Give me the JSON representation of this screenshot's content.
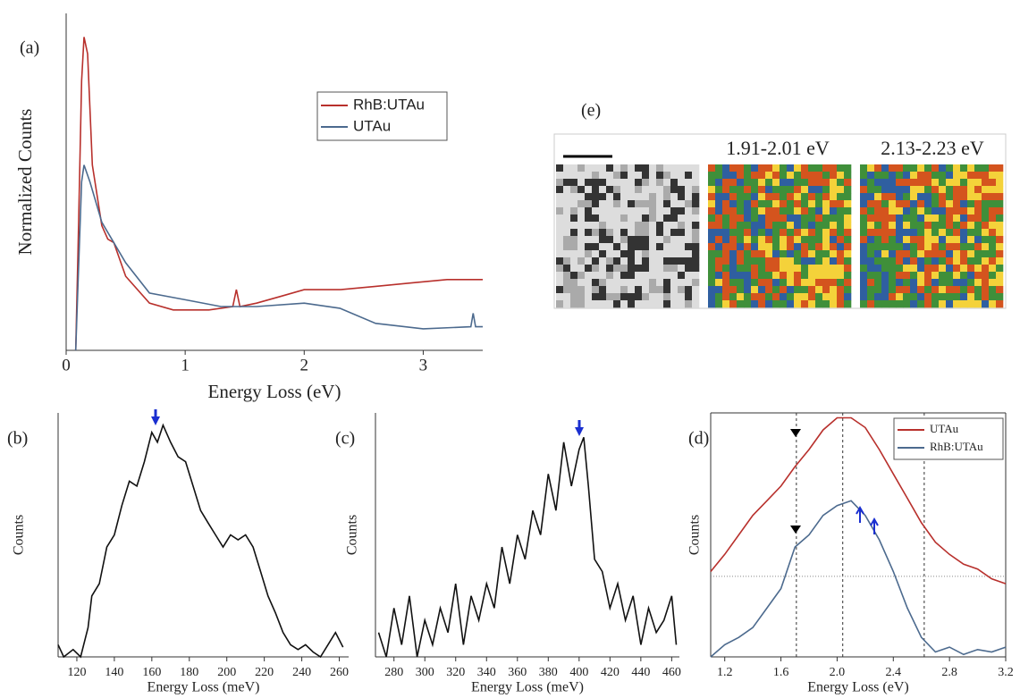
{
  "chart_data": [
    {
      "type": "line",
      "label": "(a)",
      "x_label": "Energy Loss (eV)",
      "y_label": "Normalized Counts",
      "xlim": [
        0,
        3.5
      ],
      "ylim": [
        0,
        1
      ],
      "xticks": [
        0,
        1,
        2,
        3
      ],
      "legend": "upper right",
      "series": [
        {
          "name": "RhB:UTAu",
          "color": "#b8302c",
          "x": [
            0.08,
            0.1,
            0.13,
            0.15,
            0.18,
            0.22,
            0.3,
            0.35,
            0.4,
            0.5,
            0.7,
            0.9,
            1.2,
            1.4,
            1.43,
            1.46,
            1.6,
            1.8,
            2.0,
            2.3,
            2.6,
            2.9,
            3.2,
            3.5
          ],
          "values": [
            0,
            0.3,
            0.8,
            0.93,
            0.88,
            0.55,
            0.37,
            0.33,
            0.32,
            0.22,
            0.14,
            0.12,
            0.12,
            0.13,
            0.18,
            0.13,
            0.14,
            0.16,
            0.18,
            0.18,
            0.19,
            0.2,
            0.21,
            0.21
          ]
        },
        {
          "name": "UTAu",
          "color": "#4c6a8e",
          "x": [
            0.08,
            0.1,
            0.13,
            0.15,
            0.2,
            0.3,
            0.5,
            0.7,
            1.0,
            1.3,
            1.6,
            2.0,
            2.3,
            2.6,
            3.0,
            3.4,
            3.42,
            3.44,
            3.5
          ],
          "values": [
            0,
            0.2,
            0.5,
            0.55,
            0.5,
            0.38,
            0.26,
            0.17,
            0.15,
            0.13,
            0.13,
            0.14,
            0.125,
            0.08,
            0.064,
            0.07,
            0.11,
            0.07,
            0.07
          ]
        }
      ]
    },
    {
      "type": "line",
      "label": "(b)",
      "x_label": "Energy Loss (meV)",
      "y_label": "Counts",
      "xlim": [
        110,
        265
      ],
      "ylim": [
        0,
        1
      ],
      "xticks": [
        120,
        140,
        160,
        180,
        200,
        220,
        240,
        260
      ],
      "series": [
        {
          "color": "#111111",
          "x": [
            110,
            113,
            118,
            122,
            126,
            128,
            132,
            136,
            140,
            144,
            148,
            152,
            156,
            160,
            163,
            166,
            170,
            174,
            178,
            182,
            186,
            190,
            194,
            198,
            202,
            206,
            210,
            214,
            218,
            222,
            226,
            230,
            234,
            238,
            242,
            246,
            250,
            254,
            258,
            262
          ],
          "values": [
            0.05,
            0,
            0.03,
            0,
            0.12,
            0.25,
            0.3,
            0.45,
            0.5,
            0.62,
            0.72,
            0.7,
            0.8,
            0.92,
            0.88,
            0.95,
            0.88,
            0.82,
            0.8,
            0.7,
            0.6,
            0.55,
            0.5,
            0.45,
            0.5,
            0.48,
            0.5,
            0.45,
            0.35,
            0.25,
            0.18,
            0.1,
            0.05,
            0.03,
            0.05,
            0.02,
            0,
            0.05,
            0.1,
            0.04
          ]
        }
      ]
    },
    {
      "type": "line",
      "label": "(c)",
      "x_label": "Energy Loss (meV)",
      "y_label": "Counts",
      "xlim": [
        268,
        465
      ],
      "ylim": [
        0,
        1
      ],
      "xticks": [
        280,
        300,
        320,
        340,
        360,
        380,
        400,
        420,
        440,
        460
      ],
      "series": [
        {
          "color": "#111111",
          "x": [
            270,
            275,
            280,
            285,
            290,
            295,
            300,
            305,
            310,
            315,
            320,
            325,
            330,
            335,
            340,
            345,
            350,
            355,
            360,
            365,
            370,
            375,
            380,
            385,
            390,
            395,
            400,
            403,
            406,
            410,
            415,
            420,
            425,
            430,
            435,
            440,
            445,
            450,
            455,
            460,
            463
          ],
          "values": [
            0.1,
            0,
            0.2,
            0.05,
            0.25,
            0,
            0.15,
            0.05,
            0.2,
            0.1,
            0.3,
            0.05,
            0.25,
            0.15,
            0.3,
            0.2,
            0.45,
            0.3,
            0.5,
            0.4,
            0.6,
            0.5,
            0.75,
            0.6,
            0.88,
            0.7,
            0.85,
            0.9,
            0.7,
            0.4,
            0.35,
            0.2,
            0.3,
            0.15,
            0.25,
            0.05,
            0.2,
            0.1,
            0.15,
            0.25,
            0.05
          ]
        }
      ]
    },
    {
      "type": "line",
      "label": "(d)",
      "x_label": "Energy Loss (eV)",
      "y_label": "Counts",
      "xlim": [
        1.1,
        3.2
      ],
      "ylim": [
        0,
        1
      ],
      "legend": "upper right",
      "frame": true,
      "xticks": [
        1.2,
        1.6,
        {
          "value": 2,
          "label": "2.0"
        },
        2.4,
        2.8,
        3.2
      ],
      "vlines": [
        1.71,
        2.04,
        2.62
      ],
      "hlines": [
        0.33
      ],
      "series": [
        {
          "name": "UTAu",
          "color": "#b8302c",
          "x": [
            1.1,
            1.2,
            1.3,
            1.4,
            1.5,
            1.6,
            1.7,
            1.8,
            1.9,
            2.0,
            2.1,
            2.2,
            2.3,
            2.4,
            2.5,
            2.6,
            2.7,
            2.8,
            2.9,
            3.0,
            3.1,
            3.2
          ],
          "values": [
            0.35,
            0.42,
            0.5,
            0.58,
            0.64,
            0.7,
            0.78,
            0.85,
            0.93,
            0.98,
            0.98,
            0.94,
            0.85,
            0.75,
            0.65,
            0.55,
            0.47,
            0.42,
            0.38,
            0.36,
            0.32,
            0.3
          ]
        },
        {
          "name": "RhB:UTAu",
          "color": "#4c6a8e",
          "x": [
            1.1,
            1.2,
            1.3,
            1.4,
            1.5,
            1.6,
            1.7,
            1.8,
            1.9,
            2.0,
            2.1,
            2.2,
            2.3,
            2.4,
            2.5,
            2.6,
            2.7,
            2.8,
            2.9,
            3.0,
            3.1,
            3.2
          ],
          "values": [
            0,
            0.05,
            0.08,
            0.12,
            0.2,
            0.28,
            0.45,
            0.5,
            0.58,
            0.62,
            0.64,
            0.58,
            0.48,
            0.35,
            0.2,
            0.08,
            0.02,
            0.04,
            0.01,
            0.03,
            0.02,
            0.04
          ]
        }
      ]
    }
  ],
  "panel_e": {
    "label": "(e)",
    "maps": [
      "1.91-2.01 eV",
      "2.13-2.23 eV"
    ]
  }
}
